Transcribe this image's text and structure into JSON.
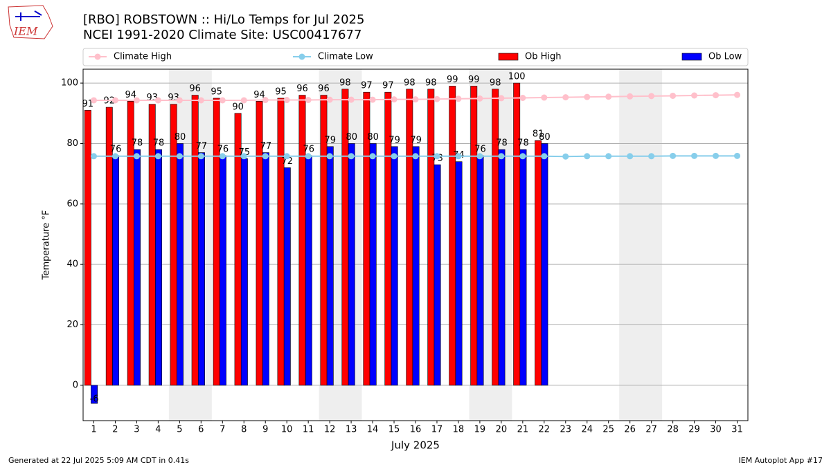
{
  "chart_data": {
    "type": "bar",
    "title": "[RBO] ROBSTOWN :: Hi/Lo Temps for Jul 2025",
    "subtitle": "NCEI 1991-2020 Climate Site: USC00417677",
    "logo_text": "IEM",
    "x_label": "July 2025",
    "y_label": "Temperature °F",
    "footer_left": "Generated at 22 Jul 2025 5:09 AM CDT in 0.41s",
    "footer_right": "IEM Autoplot App #17",
    "x": [
      1,
      2,
      3,
      4,
      5,
      6,
      7,
      8,
      9,
      10,
      11,
      12,
      13,
      14,
      15,
      16,
      17,
      18,
      19,
      20,
      21,
      22,
      23,
      24,
      25,
      26,
      27,
      28,
      29,
      30,
      31
    ],
    "xlim": [
      0.5,
      31.5
    ],
    "xticks": [
      1,
      2,
      3,
      4,
      5,
      6,
      7,
      8,
      9,
      10,
      11,
      12,
      13,
      14,
      15,
      16,
      17,
      18,
      19,
      20,
      21,
      22,
      23,
      24,
      25,
      26,
      27,
      28,
      29,
      30,
      31
    ],
    "ylim": [
      -11.7,
      104.6
    ],
    "yticks": [
      0,
      20,
      40,
      60,
      80,
      100
    ],
    "grid": true,
    "legend": "top",
    "shaded_ranges": [
      [
        4.5,
        6.5
      ],
      [
        11.5,
        13.5
      ],
      [
        18.5,
        20.5
      ],
      [
        25.5,
        27.5
      ]
    ],
    "shade_color": "#eeeeee",
    "series": [
      {
        "name": "Climate High",
        "kind": "line",
        "color": "#ffc0cb",
        "values": [
          94.3,
          94.3,
          94.3,
          94.3,
          94.3,
          94.3,
          94.3,
          94.3,
          94.4,
          94.4,
          94.4,
          94.5,
          94.5,
          94.5,
          94.6,
          94.6,
          94.7,
          94.8,
          94.9,
          95.0,
          95.1,
          95.2,
          95.3,
          95.4,
          95.5,
          95.6,
          95.7,
          95.8,
          95.9,
          96.0,
          96.1
        ]
      },
      {
        "name": "Climate Low",
        "kind": "line",
        "color": "#87ceeb",
        "values": [
          75.8,
          75.8,
          75.8,
          75.8,
          75.8,
          75.8,
          75.8,
          75.8,
          75.8,
          75.8,
          75.8,
          75.8,
          75.8,
          75.8,
          75.8,
          75.8,
          75.8,
          75.8,
          75.8,
          75.8,
          75.8,
          75.8,
          75.7,
          75.8,
          75.8,
          75.8,
          75.8,
          75.9,
          75.9,
          75.9,
          75.9
        ]
      },
      {
        "name": "Ob High",
        "kind": "bar",
        "color": "#ff0000",
        "offset": -0.43,
        "values": [
          91,
          92,
          94,
          93,
          93,
          96,
          95,
          90,
          94,
          95,
          96,
          96,
          98,
          97,
          97,
          98,
          98,
          99,
          99,
          98,
          100,
          81,
          null,
          null,
          null,
          null,
          null,
          null,
          null,
          null,
          null
        ]
      },
      {
        "name": "Ob Low",
        "kind": "bar",
        "color": "#0000ff",
        "offset": -0.13,
        "values": [
          -6,
          76,
          78,
          78,
          80,
          77,
          76,
          75,
          77,
          72,
          76,
          79,
          80,
          80,
          79,
          79,
          73,
          74,
          76,
          78,
          78,
          80,
          null,
          null,
          null,
          null,
          null,
          null,
          null,
          null,
          null
        ]
      }
    ]
  }
}
